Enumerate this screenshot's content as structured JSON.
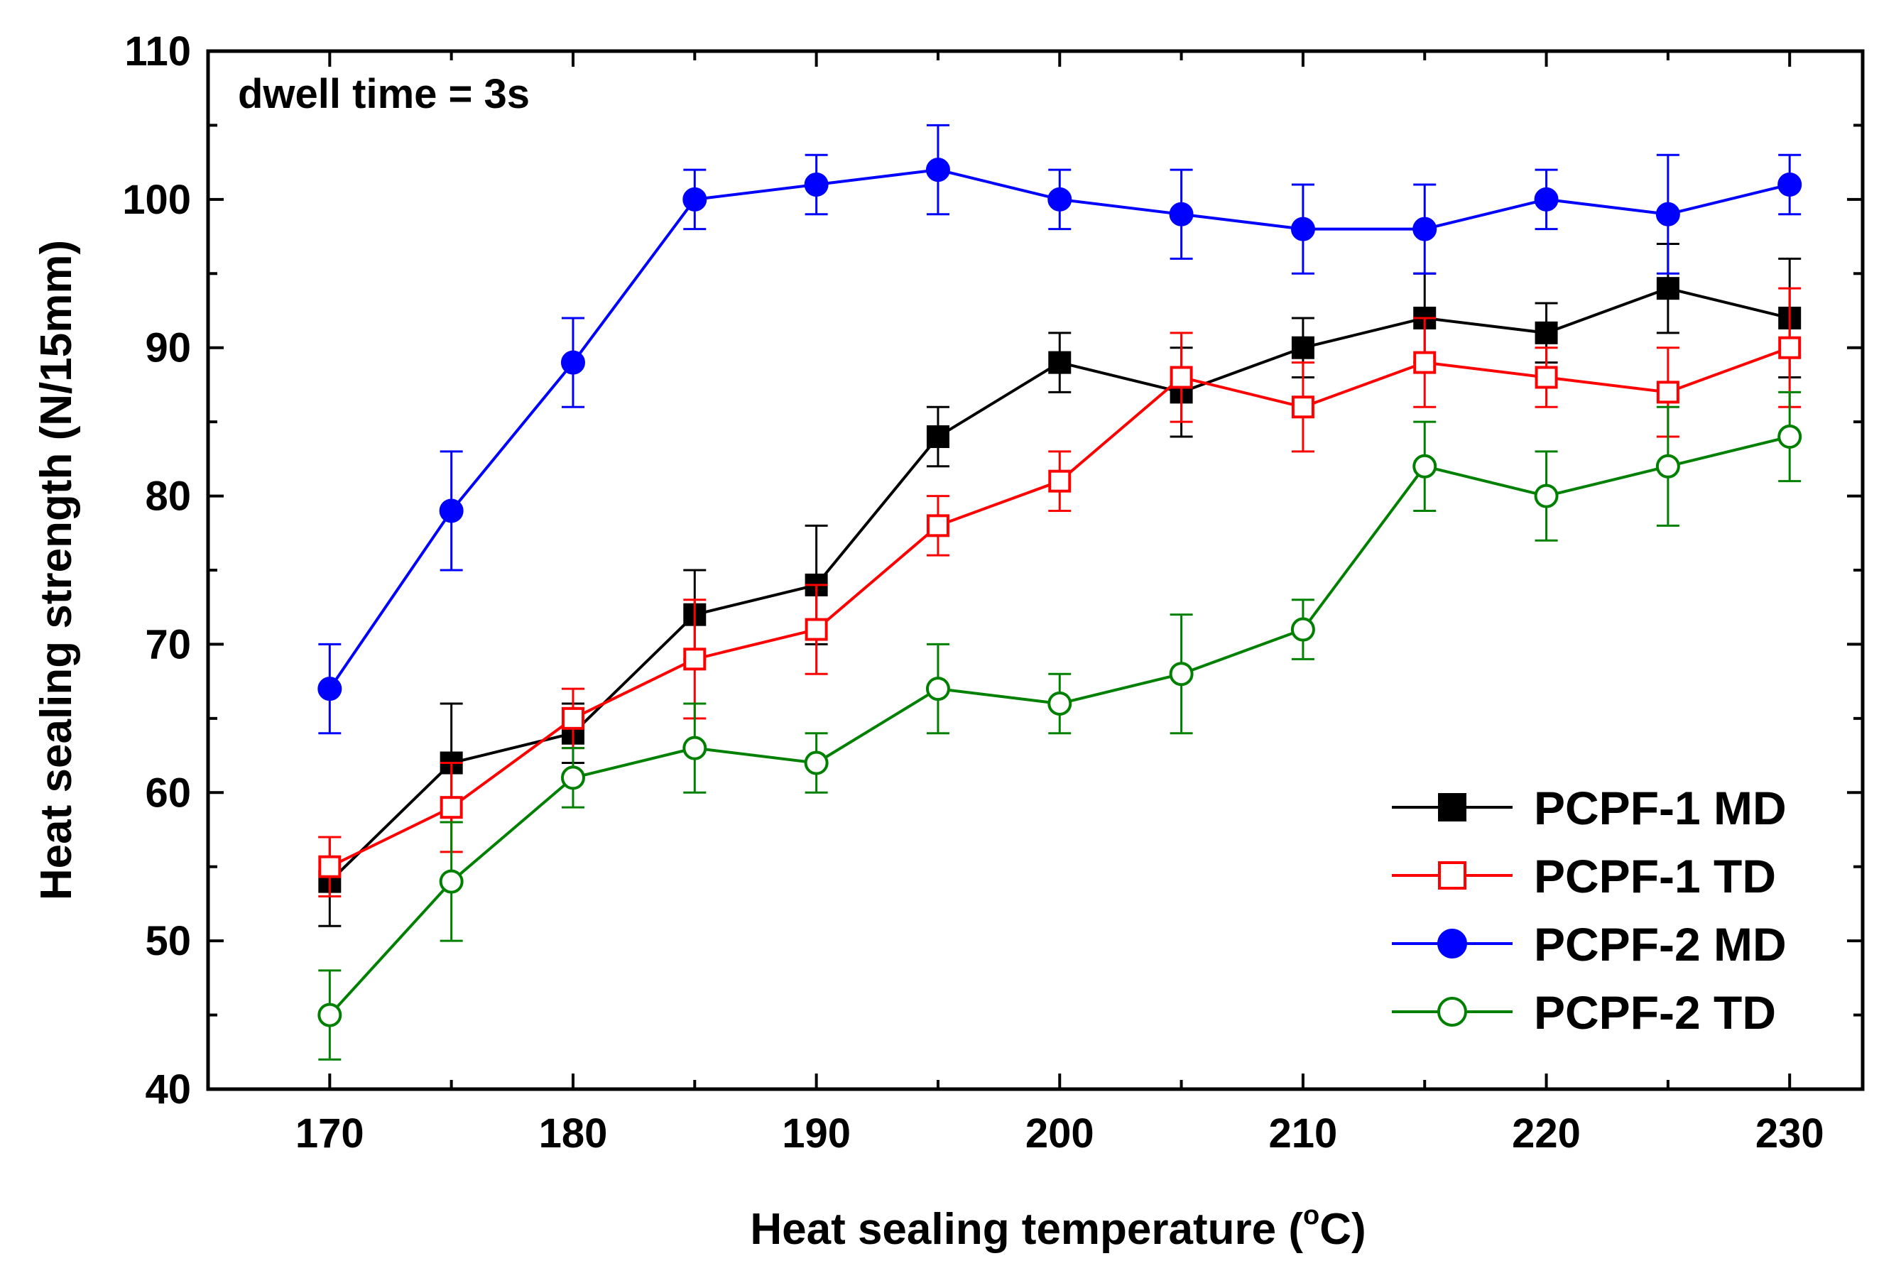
{
  "chart_data": {
    "type": "line",
    "title": "",
    "annotation": "dwell time = 3s",
    "xlabel_main": "Heat sealing temperature (",
    "xlabel_sup": "o",
    "xlabel_end": "C)",
    "ylabel": "Heat sealing strength (N/15mm)",
    "xlim": [
      165,
      233
    ],
    "ylim": [
      40,
      110
    ],
    "x_ticks": [
      170,
      180,
      190,
      200,
      210,
      220,
      230
    ],
    "y_ticks": [
      40,
      50,
      60,
      70,
      80,
      90,
      100,
      110
    ],
    "x": [
      170,
      175,
      180,
      185,
      190,
      195,
      200,
      205,
      210,
      215,
      220,
      225,
      230
    ],
    "legend_position": "bottom-right",
    "series": [
      {
        "name": "PCPF-1 MD",
        "color": "#000000",
        "marker": "square-filled",
        "values": [
          54,
          62,
          64,
          72,
          74,
          84,
          89,
          87,
          90,
          92,
          91,
          94,
          92
        ],
        "errors": [
          3,
          4,
          2,
          3,
          4,
          2,
          2,
          3,
          2,
          3,
          2,
          3,
          4
        ]
      },
      {
        "name": "PCPF-1 TD",
        "color": "#ff0000",
        "marker": "square-open",
        "values": [
          55,
          59,
          65,
          69,
          71,
          78,
          81,
          88,
          86,
          89,
          88,
          87,
          90
        ],
        "errors": [
          2,
          3,
          2,
          4,
          3,
          2,
          2,
          3,
          3,
          3,
          2,
          3,
          4
        ]
      },
      {
        "name": "PCPF-2 MD",
        "color": "#0000ff",
        "marker": "circle-filled",
        "values": [
          67,
          79,
          89,
          100,
          101,
          102,
          100,
          99,
          98,
          98,
          100,
          99,
          101
        ],
        "errors": [
          3,
          4,
          3,
          2,
          2,
          3,
          2,
          3,
          3,
          3,
          2,
          4,
          2
        ]
      },
      {
        "name": "PCPF-2 TD",
        "color": "#008000",
        "marker": "circle-open",
        "values": [
          45,
          54,
          61,
          63,
          62,
          67,
          66,
          68,
          71,
          82,
          80,
          82,
          84
        ],
        "errors": [
          3,
          4,
          2,
          3,
          2,
          3,
          2,
          4,
          2,
          3,
          3,
          4,
          3
        ]
      }
    ]
  }
}
